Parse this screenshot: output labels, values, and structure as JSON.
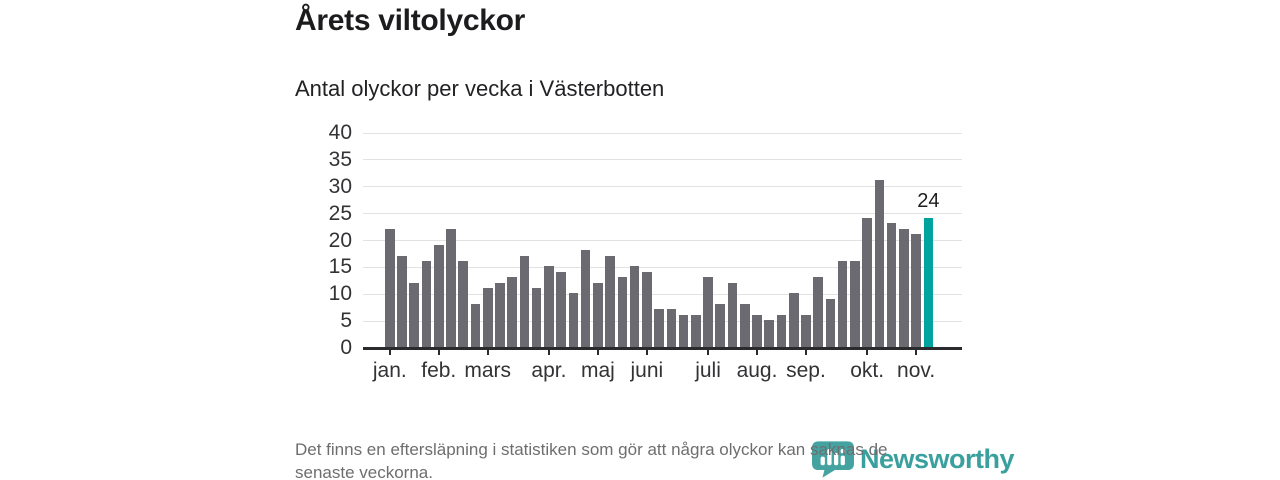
{
  "header": {
    "title": "Årets viltolyckor",
    "subtitle": "Antal olyckor per vecka i Västerbotten"
  },
  "chart_data": {
    "type": "bar",
    "title": "Årets viltolyckor",
    "subtitle": "Antal olyckor per vecka i Västerbotten",
    "x_unit": "vecka (week)",
    "values": [
      22,
      17,
      12,
      16,
      19,
      22,
      16,
      8,
      11,
      12,
      13,
      17,
      11,
      15,
      14,
      10,
      18,
      12,
      17,
      13,
      15,
      14,
      7,
      7,
      6,
      6,
      13,
      8,
      12,
      8,
      6,
      5,
      6,
      10,
      6,
      13,
      9,
      16,
      16,
      24,
      31,
      23,
      22,
      21,
      24
    ],
    "highlight_index": 44,
    "highlight_label": "24",
    "ylim": [
      0,
      40
    ],
    "y_ticks": [
      0,
      5,
      10,
      15,
      20,
      25,
      30,
      35,
      40
    ],
    "month_ticks": [
      {
        "label": "jan.",
        "week": 1
      },
      {
        "label": "feb.",
        "week": 5
      },
      {
        "label": "mars",
        "week": 9
      },
      {
        "label": "apr.",
        "week": 14
      },
      {
        "label": "maj",
        "week": 18
      },
      {
        "label": "juni",
        "week": 22
      },
      {
        "label": "juli",
        "week": 27
      },
      {
        "label": "aug.",
        "week": 31
      },
      {
        "label": "sep.",
        "week": 35
      },
      {
        "label": "okt.",
        "week": 40
      },
      {
        "label": "nov.",
        "week": 44
      }
    ],
    "grid": "horizontal",
    "legend": "none",
    "colors": {
      "bar": "#6a6a70",
      "highlight": "#00a39e",
      "grid": "#e2e2e2",
      "axis": "#2b2b2e",
      "text": "#333336"
    }
  },
  "footer": {
    "note_line1": "Det finns en eftersläpning i statistiken som gör att några olyckor kan saknas de",
    "note_line2": "senaste veckorna.",
    "logo_text": "Newsworthy"
  }
}
